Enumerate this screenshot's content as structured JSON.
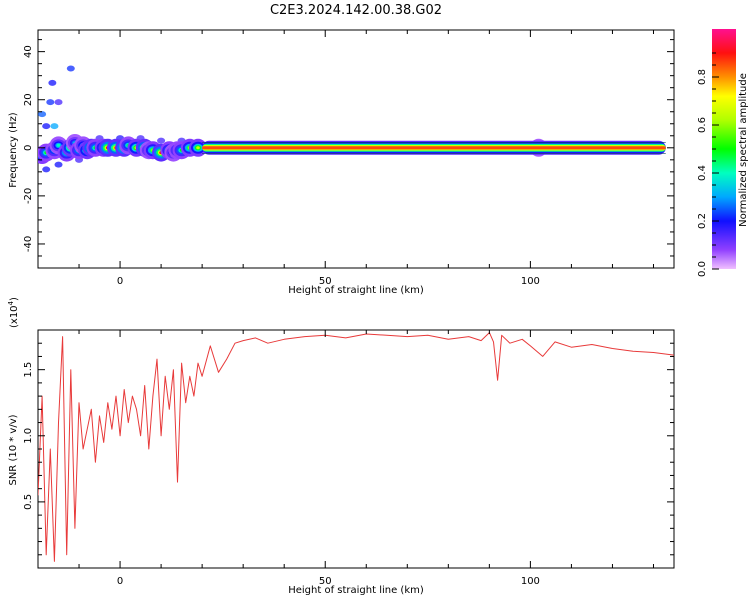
{
  "title": "C2E3.2024.142.00.38.G02",
  "chart_data": [
    {
      "type": "heatmap",
      "xlabel": "Height of straight line (km)",
      "ylabel": "Frequency (Hz)",
      "xlim": [
        -20,
        135
      ],
      "ylim": [
        -50,
        49
      ],
      "x_ticks": [
        "0",
        "50",
        "100"
      ],
      "x_tick_values": [
        0,
        50,
        100
      ],
      "y_ticks": [
        "40",
        "20",
        "0",
        "-20",
        "-40"
      ],
      "y_tick_values": [
        40,
        20,
        0,
        -20,
        -40
      ],
      "band": {
        "x_start": 20,
        "x_end": 133,
        "frequency": 0,
        "amplitude": 0.95
      },
      "blobs": [
        {
          "x": -19,
          "f": -3,
          "a": 0.6
        },
        {
          "x": -18,
          "f": -2,
          "a": 0.5
        },
        {
          "x": -16,
          "f": -1,
          "a": 0.45
        },
        {
          "x": -15,
          "f": 1,
          "a": 0.4
        },
        {
          "x": -13,
          "f": -2,
          "a": 0.55
        },
        {
          "x": -12,
          "f": 0,
          "a": 0.75
        },
        {
          "x": -11,
          "f": 2,
          "a": 0.35
        },
        {
          "x": -10,
          "f": -1,
          "a": 0.5
        },
        {
          "x": -9,
          "f": 1,
          "a": 0.4
        },
        {
          "x": -8,
          "f": -1,
          "a": 0.7
        },
        {
          "x": -7,
          "f": 0,
          "a": 0.85
        },
        {
          "x": -6,
          "f": 0,
          "a": 0.5
        },
        {
          "x": -4,
          "f": 0,
          "a": 0.6
        },
        {
          "x": -3,
          "f": 0,
          "a": 0.9
        },
        {
          "x": -1,
          "f": 0,
          "a": 0.85
        },
        {
          "x": 1,
          "f": 0,
          "a": 0.9
        },
        {
          "x": 2,
          "f": 1,
          "a": 0.45
        },
        {
          "x": 4,
          "f": 0,
          "a": 0.7
        },
        {
          "x": 6,
          "f": 0,
          "a": 0.85
        },
        {
          "x": 7,
          "f": -1,
          "a": 0.4
        },
        {
          "x": 8,
          "f": -1,
          "a": 0.6
        },
        {
          "x": 10,
          "f": -2,
          "a": 0.9
        },
        {
          "x": 12,
          "f": -1,
          "a": 0.55
        },
        {
          "x": 13,
          "f": -2,
          "a": 0.4
        },
        {
          "x": 14,
          "f": -1,
          "a": 0.45
        },
        {
          "x": 15,
          "f": -1,
          "a": 0.5
        },
        {
          "x": 17,
          "f": 0,
          "a": 0.6
        },
        {
          "x": 19,
          "f": 0,
          "a": 0.65
        },
        {
          "x": 102,
          "f": 0,
          "a": 0.35
        }
      ],
      "scatter": [
        {
          "x": -19,
          "f": 14,
          "a": 0.25
        },
        {
          "x": -18,
          "f": 9,
          "a": 0.2
        },
        {
          "x": -17,
          "f": 19,
          "a": 0.22
        },
        {
          "x": -16.5,
          "f": 27,
          "a": 0.2
        },
        {
          "x": -16,
          "f": 9,
          "a": 0.3
        },
        {
          "x": -15,
          "f": 19,
          "a": 0.15
        },
        {
          "x": -12,
          "f": 33,
          "a": 0.22
        },
        {
          "x": -18,
          "f": -9,
          "a": 0.2
        },
        {
          "x": -15,
          "f": -7,
          "a": 0.2
        },
        {
          "x": -10,
          "f": -5,
          "a": 0.15
        },
        {
          "x": -5,
          "f": 4,
          "a": 0.15
        },
        {
          "x": 0,
          "f": 4,
          "a": 0.18
        },
        {
          "x": 5,
          "f": 4,
          "a": 0.15
        },
        {
          "x": 10,
          "f": 3,
          "a": 0.15
        },
        {
          "x": 15,
          "f": 3,
          "a": 0.15
        }
      ],
      "colorbar": {
        "label": "Normalized spectral amplitude",
        "ticks": [
          "0.0",
          "0.2",
          "0.4",
          "0.6",
          "0.8"
        ],
        "tick_values": [
          0.0,
          0.2,
          0.4,
          0.6,
          0.8
        ],
        "range": [
          0,
          1
        ]
      }
    },
    {
      "type": "line",
      "xlabel": "Height of straight line (km)",
      "ylabel": "SNR (10 * v/v)",
      "scale_label": "(x10",
      "scale_exponent": "4",
      "scale_close": ")",
      "xlim": [
        -20,
        135
      ],
      "ylim": [
        0,
        1.8
      ],
      "x_ticks": [
        "0",
        "50",
        "100"
      ],
      "x_tick_values": [
        0,
        50,
        100
      ],
      "y_ticks": [
        "0.5",
        "1.0",
        "1.5"
      ],
      "y_tick_values": [
        0.5,
        1.0,
        1.5
      ],
      "series": [
        {
          "color": "#e83a3a",
          "x": [
            -20,
            -19,
            -18,
            -17,
            -16,
            -15,
            -14,
            -13,
            -12,
            -11,
            -10,
            -9,
            -8,
            -7,
            -6,
            -5,
            -4,
            -3,
            -2,
            -1,
            0,
            1,
            2,
            3,
            4,
            5,
            6,
            7,
            8,
            9,
            10,
            11,
            12,
            13,
            14,
            15,
            16,
            17,
            18,
            19,
            20,
            22,
            24,
            26,
            28,
            30,
            33,
            36,
            40,
            45,
            50,
            55,
            60,
            65,
            70,
            75,
            80,
            85,
            88,
            90,
            91,
            92,
            93,
            95,
            98,
            100,
            103,
            106,
            110,
            115,
            120,
            125,
            130,
            135
          ],
          "y": [
            0.55,
            1.3,
            0.1,
            0.9,
            0.05,
            1.1,
            1.75,
            0.1,
            1.5,
            0.3,
            1.25,
            0.9,
            1.05,
            1.2,
            0.8,
            1.15,
            0.95,
            1.25,
            1.05,
            1.3,
            1.0,
            1.35,
            1.1,
            1.3,
            1.2,
            1.0,
            1.38,
            0.9,
            1.3,
            1.58,
            1.0,
            1.45,
            1.2,
            1.5,
            0.65,
            1.55,
            1.25,
            1.45,
            1.3,
            1.55,
            1.45,
            1.68,
            1.48,
            1.58,
            1.7,
            1.72,
            1.74,
            1.7,
            1.73,
            1.75,
            1.76,
            1.74,
            1.77,
            1.76,
            1.75,
            1.76,
            1.73,
            1.75,
            1.72,
            1.78,
            1.71,
            1.42,
            1.76,
            1.7,
            1.73,
            1.68,
            1.6,
            1.71,
            1.67,
            1.69,
            1.66,
            1.64,
            1.63,
            1.61
          ]
        }
      ]
    }
  ]
}
